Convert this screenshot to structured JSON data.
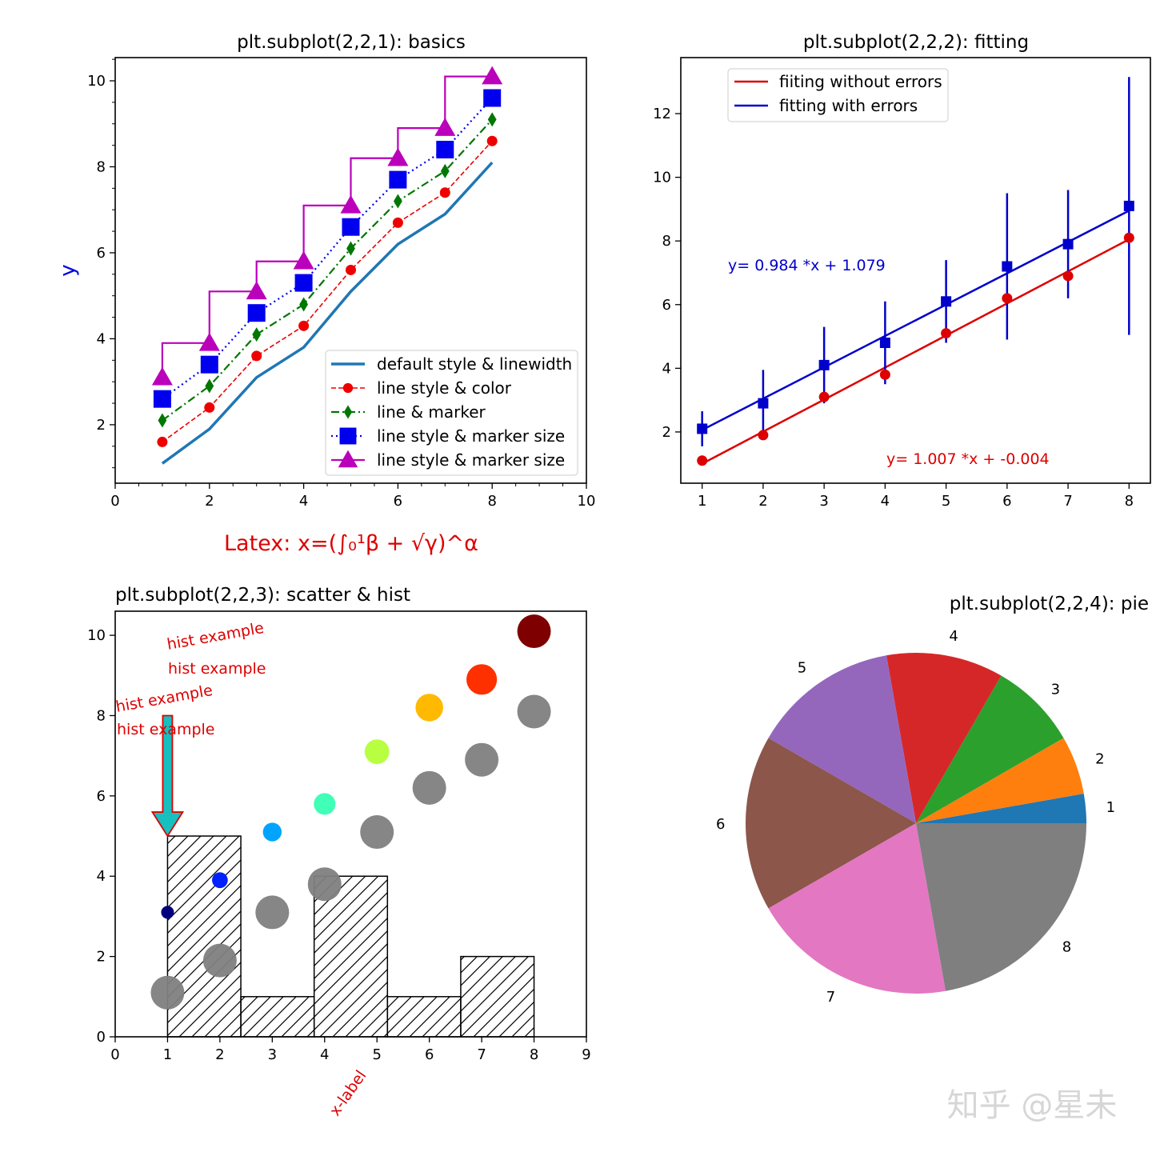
{
  "watermark": "知乎 @星未",
  "chart_data": [
    {
      "type": "line",
      "title": "plt.subplot(2,2,1): basics",
      "title_color": "#000000",
      "xlabel": "Latex: x=(∫₀¹β + √γ)^α",
      "xlabel_color": "#dd0000",
      "ylabel": "y",
      "ylabel_color": "#0000dd",
      "xlim": [
        0,
        10
      ],
      "ylim": [
        0.64,
        10.54
      ],
      "xticks": [
        "0",
        "2",
        "4",
        "6",
        "8",
        "10"
      ],
      "yticks": [
        "2",
        "4",
        "6",
        "8",
        "10"
      ],
      "legend_placement": "lower right",
      "x": [
        1,
        2,
        3,
        4,
        5,
        6,
        7,
        8
      ],
      "series": [
        {
          "name": "default style & linewidth",
          "color": "#1f77b4",
          "linestyle": "solid",
          "marker": "none",
          "values": [
            1.1,
            1.9,
            3.1,
            3.8,
            5.1,
            6.2,
            6.9,
            8.1
          ]
        },
        {
          "name": "line style & color",
          "color": "#ee0000",
          "linestyle": "dashed",
          "marker": "circle",
          "values": [
            1.6,
            2.4,
            3.6,
            4.3,
            5.6,
            6.7,
            7.4,
            8.6
          ]
        },
        {
          "name": "line & marker",
          "color": "#007700",
          "linestyle": "dashdot",
          "marker": "thin-diamond",
          "values": [
            2.1,
            2.9,
            4.1,
            4.8,
            6.1,
            7.2,
            7.9,
            9.1
          ]
        },
        {
          "name": "line style & marker size",
          "color": "#0000ee",
          "linestyle": "dotted",
          "marker": "square",
          "values": [
            2.6,
            3.4,
            4.6,
            5.3,
            6.6,
            7.7,
            8.4,
            9.6
          ]
        },
        {
          "name": "line style & marker size",
          "color": "#bb00bb",
          "linestyle": "steps",
          "marker": "triangle",
          "values": [
            3.1,
            3.9,
            5.1,
            5.8,
            7.1,
            8.2,
            8.9,
            10.1
          ]
        }
      ]
    },
    {
      "type": "scatter",
      "title": "plt.subplot(2,2,2): fitting",
      "title_color": "#dd0000",
      "xlim": [
        0.65,
        8.35
      ],
      "ylim": [
        0.39,
        13.76
      ],
      "xticks": [
        "1",
        "2",
        "3",
        "4",
        "5",
        "6",
        "7",
        "8"
      ],
      "yticks": [
        "2",
        "4",
        "6",
        "8",
        "10",
        "12"
      ],
      "legend_placement": "upper left",
      "x": [
        1,
        2,
        3,
        4,
        5,
        6,
        7,
        8
      ],
      "series": [
        {
          "name": "fiiting without errors",
          "color": "#dd0000",
          "marker": "circle",
          "values": [
            1.1,
            1.9,
            3.1,
            3.8,
            5.1,
            6.2,
            6.9,
            8.1
          ],
          "fit": {
            "slope": 1.007,
            "intercept": -0.004,
            "label": "y= 1.007 *x + -0.004"
          }
        },
        {
          "name": "fitting with errors",
          "color": "#0000cc",
          "marker": "square",
          "values": [
            2.1,
            2.9,
            4.1,
            4.8,
            6.1,
            7.2,
            7.9,
            9.1
          ],
          "errors": [
            0.55,
            1.05,
            1.2,
            1.3,
            1.3,
            2.3,
            1.7,
            4.05
          ],
          "fit": {
            "slope": 0.984,
            "intercept": 1.079,
            "label": "y= 0.984 *x +  1.079"
          }
        }
      ]
    },
    {
      "type": "scatter",
      "title": "plt.subplot(2,2,3): scatter & hist",
      "title_color": "#0000dd",
      "xlabel": "x-label",
      "xlabel_color": "#dd0000",
      "xlim": [
        0,
        9
      ],
      "ylim": [
        0,
        10.6
      ],
      "xticks": [
        "0",
        "1",
        "2",
        "3",
        "4",
        "5",
        "6",
        "7",
        "8",
        "9"
      ],
      "yticks": [
        "0",
        "2",
        "4",
        "6",
        "8",
        "10"
      ],
      "hist": {
        "bin_edges": [
          1,
          2.4,
          3.8,
          5.2,
          6.6,
          8
        ],
        "counts": [
          5,
          1,
          4,
          1,
          2
        ],
        "hatch": "/"
      },
      "x": [
        1,
        2,
        3,
        4,
        5,
        6,
        7,
        8
      ],
      "gray_series": {
        "color": "#808080",
        "values": [
          1.1,
          1.9,
          3.1,
          3.8,
          5.1,
          6.2,
          6.9,
          8.1
        ]
      },
      "color_series": {
        "colormap": "jet",
        "values": [
          3.1,
          3.9,
          5.1,
          5.8,
          7.1,
          8.2,
          8.9,
          10.1
        ],
        "colors": [
          "#00007f",
          "#0020ff",
          "#00a4ff",
          "#40ffb7",
          "#b7ff40",
          "#ffb900",
          "#ff3000",
          "#7f0000"
        ]
      },
      "annotations": [
        "hist example",
        "hist example",
        "hist example",
        "hist example"
      ],
      "arrow": {
        "from": [
          1,
          8
        ],
        "to": [
          1,
          5
        ],
        "facecolor": "#17bfbf",
        "edgecolor": "#dd0000"
      }
    },
    {
      "type": "pie",
      "title": "plt.subplot(2,2,4): pie",
      "title_color": "#bb00bb",
      "labels": [
        "1",
        "2",
        "3",
        "4",
        "5",
        "6",
        "7",
        "8"
      ],
      "values": [
        1,
        2,
        3,
        4,
        5,
        6,
        7,
        8
      ],
      "colors": [
        "#1f77b4",
        "#ff7f0e",
        "#2ca02c",
        "#d62728",
        "#9467bd",
        "#8c564b",
        "#e377c2",
        "#7f7f7f"
      ]
    }
  ]
}
